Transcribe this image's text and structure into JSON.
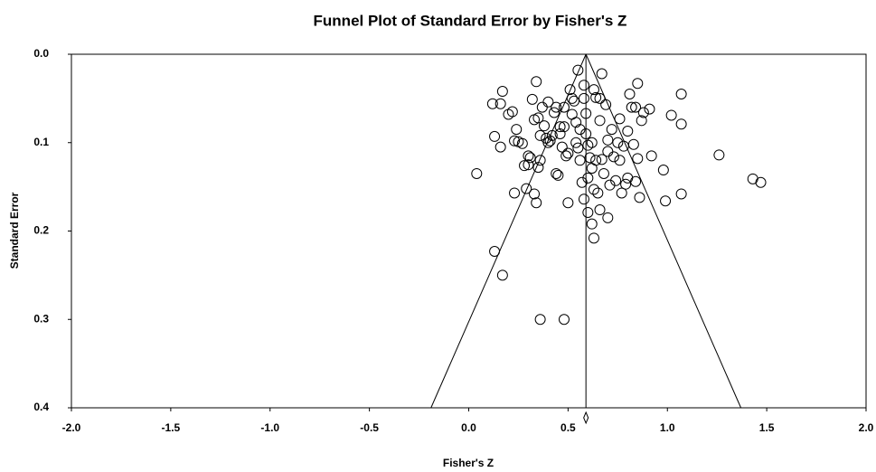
{
  "chart_data": {
    "type": "scatter",
    "title": "Funnel Plot of Standard Error by Fisher's Z",
    "x_label": "Fisher's Z",
    "y_label": "Standard Error",
    "xlim": [
      -2,
      2
    ],
    "xticks": [
      {
        "value": -2,
        "label": "-2.0"
      },
      -1.5,
      {
        "value": -1,
        "label": "-1.0"
      },
      -0.5,
      {
        "value": 0,
        "label": "0.0"
      },
      0.5,
      {
        "value": 1,
        "label": "1.0"
      },
      1.5,
      {
        "value": 2,
        "label": "2.0"
      }
    ],
    "ylim": [
      0,
      0.4
    ],
    "yticks": [
      {
        "value": 0,
        "label": "0.0"
      },
      0.1,
      0.2,
      0.3,
      0.4
    ],
    "y_inverted": true,
    "summary": 0.59,
    "funnel_bottom": [
      -0.19,
      1.37
    ],
    "marker_color": "#000000",
    "series": [
      {
        "x": [
          0.04,
          0.13,
          0.17,
          0.36,
          0.48,
          1.26,
          1.43,
          1.47,
          1.07,
          1.07,
          1.07,
          1.02,
          0.98,
          0.99,
          0.63,
          0.62,
          0.7,
          0.6,
          0.66,
          0.5,
          0.34,
          0.33,
          0.23,
          0.58,
          0.55,
          0.67,
          0.34,
          0.85,
          0.12,
          0.16,
          0.17,
          0.13,
          0.16,
          0.2,
          0.22,
          0.23,
          0.25,
          0.27,
          0.28,
          0.29,
          0.3,
          0.31,
          0.32,
          0.33,
          0.35,
          0.36,
          0.37,
          0.38,
          0.39,
          0.4,
          0.41,
          0.42,
          0.43,
          0.44,
          0.45,
          0.46,
          0.47,
          0.48,
          0.49,
          0.5,
          0.51,
          0.52,
          0.53,
          0.54,
          0.55,
          0.56,
          0.57,
          0.58,
          0.58,
          0.59,
          0.59,
          0.6,
          0.61,
          0.62,
          0.63,
          0.63,
          0.64,
          0.65,
          0.66,
          0.67,
          0.68,
          0.69,
          0.7,
          0.71,
          0.72,
          0.73,
          0.74,
          0.75,
          0.76,
          0.77,
          0.78,
          0.79,
          0.8,
          0.81,
          0.82,
          0.83,
          0.84,
          0.85,
          0.86,
          0.87,
          0.88,
          0.91,
          0.92,
          0.24,
          0.3,
          0.35,
          0.36,
          0.4,
          0.44,
          0.46,
          0.52,
          0.56,
          0.6,
          0.64,
          0.7,
          0.76,
          0.8,
          0.84,
          0.66,
          0.62,
          0.54,
          0.48
        ],
        "values": [
          0.135,
          0.223,
          0.25,
          0.3,
          0.3,
          0.114,
          0.141,
          0.145,
          0.045,
          0.079,
          0.158,
          0.069,
          0.131,
          0.166,
          0.208,
          0.192,
          0.185,
          0.179,
          0.176,
          0.168,
          0.168,
          0.158,
          0.157,
          0.164,
          0.018,
          0.022,
          0.031,
          0.033,
          0.056,
          0.056,
          0.042,
          0.093,
          0.105,
          0.068,
          0.065,
          0.098,
          0.099,
          0.101,
          0.126,
          0.152,
          0.115,
          0.117,
          0.051,
          0.074,
          0.072,
          0.092,
          0.06,
          0.081,
          0.095,
          0.054,
          0.098,
          0.092,
          0.066,
          0.135,
          0.137,
          0.082,
          0.105,
          0.082,
          0.115,
          0.112,
          0.04,
          0.068,
          0.053,
          0.077,
          0.106,
          0.085,
          0.145,
          0.035,
          0.05,
          0.067,
          0.09,
          0.103,
          0.117,
          0.129,
          0.04,
          0.153,
          0.049,
          0.157,
          0.075,
          0.119,
          0.135,
          0.057,
          0.097,
          0.148,
          0.085,
          0.116,
          0.143,
          0.1,
          0.073,
          0.157,
          0.104,
          0.147,
          0.087,
          0.045,
          0.06,
          0.102,
          0.144,
          0.118,
          0.162,
          0.075,
          0.066,
          0.062,
          0.115,
          0.085,
          0.125,
          0.128,
          0.12,
          0.1,
          0.06,
          0.09,
          0.05,
          0.12,
          0.14,
          0.12,
          0.11,
          0.12,
          0.14,
          0.06,
          0.05,
          0.1,
          0.1,
          0.06
        ]
      }
    ]
  }
}
